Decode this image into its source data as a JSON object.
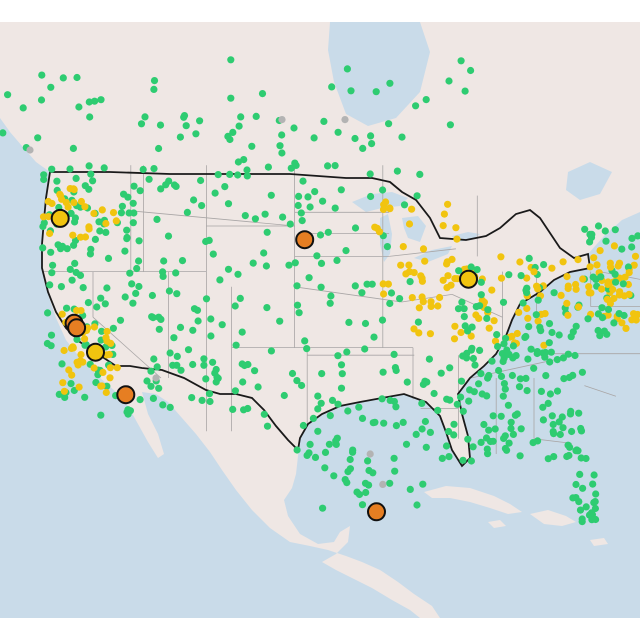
{
  "map": {
    "colors": {
      "water": "#c9dbe9",
      "land": "#efe7e4",
      "state_border": "#a9a6a6",
      "national_border": "#1a1a1a",
      "marker_outline": "#111111"
    },
    "legend_categories": [
      {
        "name": "green",
        "color": "#2ecc71"
      },
      {
        "name": "yellow",
        "color": "#f1c40f"
      },
      {
        "name": "orange",
        "color": "#e67e22"
      },
      {
        "name": "gray",
        "color": "#b3b3b3"
      }
    ],
    "large_markers": [
      {
        "lon": -122.6,
        "lat": 45.5,
        "color": "#f1c40f"
      },
      {
        "lon": -121.5,
        "lat": 38.6,
        "color": "#e67e22"
      },
      {
        "lon": -121.3,
        "lat": 38.3,
        "color": "#e67e22"
      },
      {
        "lon": -119.8,
        "lat": 36.7,
        "color": "#f1c40f"
      },
      {
        "lon": -117.4,
        "lat": 33.9,
        "color": "#e67e22"
      },
      {
        "lon": -103.2,
        "lat": 44.1,
        "color": "#e67e22"
      },
      {
        "lon": -90.2,
        "lat": 41.5,
        "color": "#f1c40f"
      },
      {
        "lon": -97.5,
        "lat": 26.2,
        "color": "#e67e22"
      }
    ]
  }
}
